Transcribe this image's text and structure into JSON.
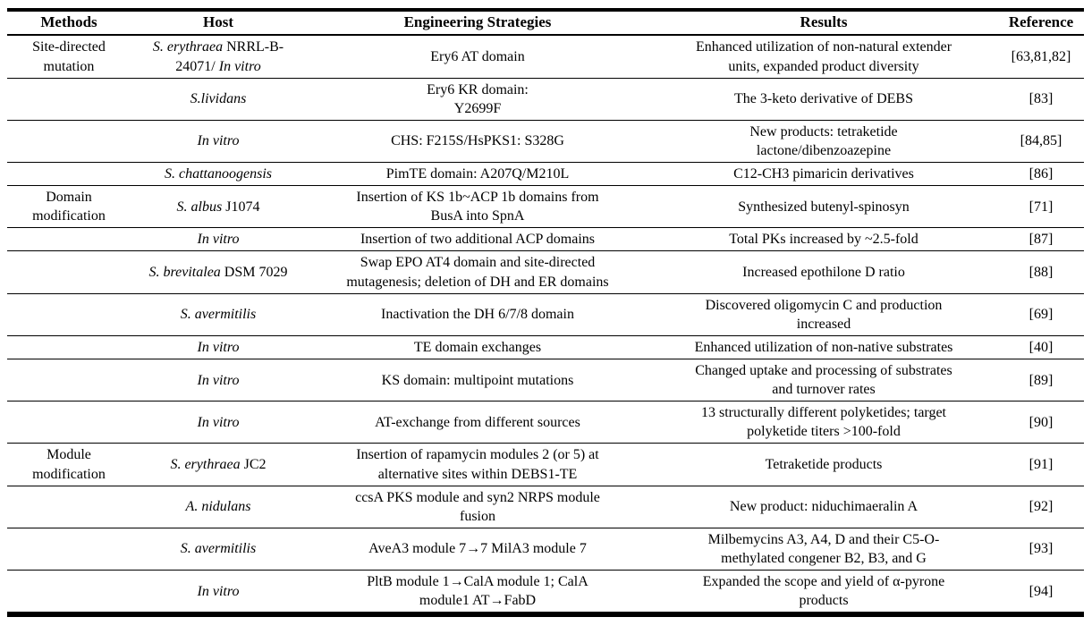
{
  "table": {
    "columns": [
      "Methods",
      "Host",
      "Engineering Strategies",
      "Results",
      "Reference"
    ],
    "rows": [
      {
        "method": "Site-directed\nmutation",
        "host": [
          {
            "t": "S. erythraea",
            "i": true
          },
          {
            "t": " NRRL-B-\n24071/ ",
            "i": false
          },
          {
            "t": "In vitro",
            "i": true
          }
        ],
        "strategy": "Ery6 AT domain",
        "result": "Enhanced utilization of non-natural extender\nunits, expanded product diversity",
        "reference": "[63,81,82]"
      },
      {
        "method": "",
        "host": [
          {
            "t": "S.lividans",
            "i": true
          }
        ],
        "strategy": "Ery6 KR domain:\nY2699F",
        "result": "The 3-keto derivative of DEBS",
        "reference": "[83]"
      },
      {
        "method": "",
        "host": [
          {
            "t": "In vitro",
            "i": true
          }
        ],
        "strategy": "CHS: F215S/HsPKS1: S328G",
        "result": "New products: tetraketide\nlactone/dibenzoazepine",
        "reference": "[84,85]"
      },
      {
        "method": "",
        "host": [
          {
            "t": "S. chattanoogensis",
            "i": true
          }
        ],
        "strategy": "PimTE domain: A207Q/M210L",
        "result": "C12-CH3 pimaricin derivatives",
        "reference": "[86]"
      },
      {
        "method": "Domain\nmodification",
        "host": [
          {
            "t": "S. albus",
            "i": true
          },
          {
            "t": " J1074",
            "i": false
          }
        ],
        "strategy": "Insertion of KS 1b~ACP 1b domains from\nBusA into SpnA",
        "result": "Synthesized butenyl-spinosyn",
        "reference": "[71]"
      },
      {
        "method": "",
        "host": [
          {
            "t": "In vitro",
            "i": true
          }
        ],
        "strategy": "Insertion of two additional ACP domains",
        "result": "Total PKs increased by ~2.5-fold",
        "reference": "[87]"
      },
      {
        "method": "",
        "host": [
          {
            "t": "S. brevitalea",
            "i": true
          },
          {
            "t": " DSM 7029",
            "i": false
          }
        ],
        "strategy": "Swap EPO AT4 domain and site-directed\nmutagenesis; deletion of DH and ER domains",
        "result": "Increased epothilone D ratio",
        "reference": "[88]"
      },
      {
        "method": "",
        "host": [
          {
            "t": "S. avermitilis",
            "i": true
          }
        ],
        "strategy": "Inactivation the DH 6/7/8 domain",
        "result": "Discovered oligomycin C and production\nincreased",
        "reference": "[69]"
      },
      {
        "method": "",
        "host": [
          {
            "t": "In vitro",
            "i": true
          }
        ],
        "strategy": "TE domain exchanges",
        "result": "Enhanced utilization of non-native substrates",
        "reference": "[40]"
      },
      {
        "method": "",
        "host": [
          {
            "t": "In vitro",
            "i": true
          }
        ],
        "strategy": "KS domain: multipoint mutations",
        "result": "Changed uptake and processing of substrates\nand turnover rates",
        "reference": "[89]"
      },
      {
        "method": "",
        "host": [
          {
            "t": "In vitro",
            "i": true
          }
        ],
        "strategy": "AT-exchange from different sources",
        "result": "13 structurally different polyketides; target\npolyketide titers >100-fold",
        "reference": "[90]"
      },
      {
        "method": "Module\nmodification",
        "host": [
          {
            "t": "S. erythraea",
            "i": true
          },
          {
            "t": " JC2",
            "i": false
          }
        ],
        "strategy": "Insertion of rapamycin modules 2 (or 5) at\nalternative sites within DEBS1-TE",
        "result": "Tetraketide products",
        "reference": "[91]"
      },
      {
        "method": "",
        "host": [
          {
            "t": "A. nidulans",
            "i": true
          }
        ],
        "strategy": "ccsA PKS module and syn2 NRPS module\nfusion",
        "result": "New product: niduchimaeralin A",
        "reference": "[92]"
      },
      {
        "method": "",
        "host": [
          {
            "t": "S. avermitilis",
            "i": true
          }
        ],
        "strategy": "AveA3 module 7→7 MilA3 module 7",
        "result": "Milbemycins A3, A4, D and their C5-O-\nmethylated congener B2, B3, and G",
        "reference": "[93]"
      },
      {
        "method": "",
        "host": [
          {
            "t": "In vitro",
            "i": true
          }
        ],
        "strategy": "PltB module 1→CalA module 1; CalA\nmodule1 AT→FabD",
        "result": "Expanded the scope and yield of α-pyrone\nproducts",
        "reference": "[94]"
      }
    ]
  }
}
